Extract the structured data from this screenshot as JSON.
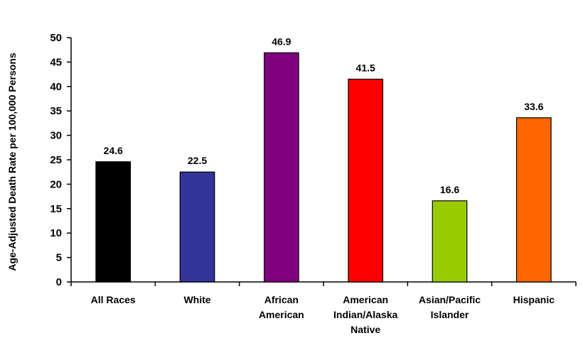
{
  "chart_data": {
    "type": "bar",
    "ylabel": "Age-Adjusted Death Rate per 100,000 Persons",
    "ylim": [
      0,
      50
    ],
    "yticks": [
      0,
      5,
      10,
      15,
      20,
      25,
      30,
      35,
      40,
      45,
      50
    ],
    "grid": false,
    "legend": "none",
    "categories": [
      [
        "All Races"
      ],
      [
        "White"
      ],
      [
        "African",
        "American"
      ],
      [
        "American",
        "Indian/Alaska",
        "Native"
      ],
      [
        "Asian/Pacific",
        "Islander"
      ],
      [
        "Hispanic"
      ]
    ],
    "values": [
      24.6,
      22.5,
      46.9,
      41.5,
      16.6,
      33.6
    ],
    "data_labels": [
      "24.6",
      "22.5",
      "46.9",
      "41.5",
      "16.6",
      "33.6"
    ],
    "colors": [
      "#000000",
      "#333399",
      "#800080",
      "#ff0000",
      "#99cc00",
      "#ff6600"
    ]
  }
}
